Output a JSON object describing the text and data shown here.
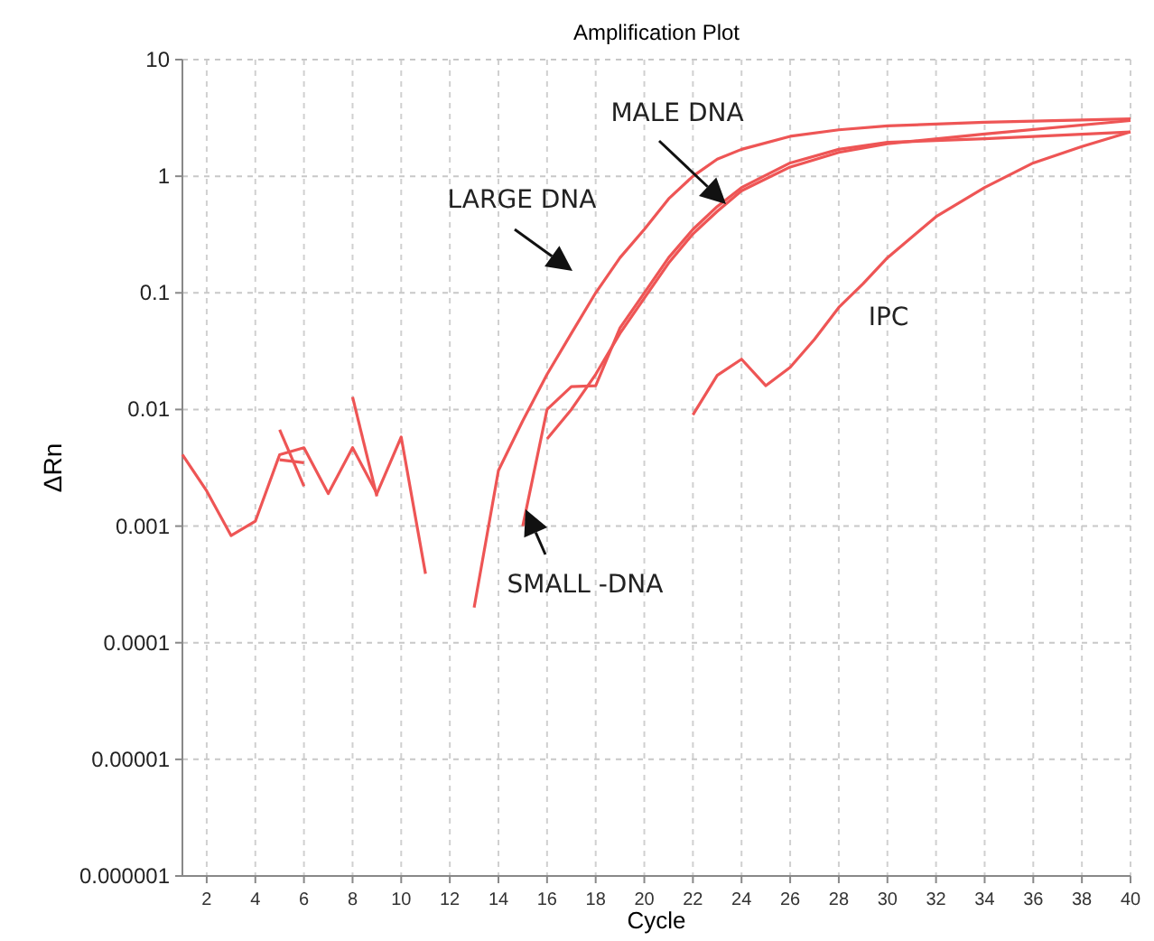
{
  "chart_data": {
    "type": "line",
    "title": "Amplification Plot",
    "xlabel": "Cycle",
    "ylabel": "ΔRn",
    "log": "y",
    "grid": true,
    "marker": "none",
    "line_style": "solid",
    "xlim": [
      1,
      40
    ],
    "xticks": [
      2,
      4,
      6,
      8,
      10,
      12,
      14,
      16,
      18,
      20,
      22,
      24,
      26,
      28,
      30,
      32,
      34,
      36,
      38,
      40
    ],
    "ylim": [
      1e-06,
      10
    ],
    "yticks": [
      {
        "value": 1e-06,
        "label": "0.000001"
      },
      {
        "value": 1e-05,
        "label": "0.00001"
      },
      {
        "value": 0.0001,
        "label": "0.0001"
      },
      {
        "value": 0.001,
        "label": "0.001"
      },
      {
        "value": 0.01,
        "label": "0.01"
      },
      {
        "value": 0.1,
        "label": "0.1"
      },
      1,
      10
    ],
    "series": [
      {
        "color": "#ee5555",
        "x": [
          1,
          2,
          3,
          4,
          5,
          6,
          7,
          8,
          9,
          10,
          11
        ],
        "values": [
          0.0041,
          0.002,
          0.00083,
          0.0011,
          0.0041,
          0.0047,
          0.0019,
          0.0047,
          0.0019,
          0.0058,
          0.00039
        ]
      },
      {
        "color": "#ee5555",
        "x": [
          5,
          6
        ],
        "values": [
          0.0067,
          0.0022
        ]
      },
      {
        "color": "#ee5555",
        "x": [
          5,
          6
        ],
        "values": [
          0.0037,
          0.0035
        ]
      },
      {
        "color": "#ee5555",
        "x": [
          8,
          9
        ],
        "values": [
          0.0128,
          0.0018
        ]
      },
      {
        "color": "#ee5555",
        "x": [
          13,
          14,
          15,
          16,
          17,
          18,
          19,
          20,
          21,
          22,
          23,
          24,
          26,
          28,
          30,
          34,
          40
        ],
        "values": [
          0.0002,
          0.003,
          0.008,
          0.02,
          0.045,
          0.1,
          0.2,
          0.35,
          0.64,
          1.0,
          1.4,
          1.7,
          2.2,
          2.5,
          2.7,
          2.9,
          3.1
        ]
      },
      {
        "color": "#ee5555",
        "x": [
          16,
          17,
          18,
          19,
          20,
          21,
          22,
          23,
          24,
          26,
          28,
          30,
          34,
          40
        ],
        "values": [
          0.0056,
          0.01,
          0.02,
          0.045,
          0.09,
          0.18,
          0.32,
          0.5,
          0.75,
          1.2,
          1.6,
          1.9,
          2.3,
          3.0
        ]
      },
      {
        "color": "#ee5555",
        "x": [
          15,
          16,
          17,
          18,
          19,
          20,
          21,
          22,
          23,
          24,
          26,
          28,
          30,
          34,
          40
        ],
        "values": [
          0.001,
          0.01,
          0.0157,
          0.016,
          0.05,
          0.1,
          0.2,
          0.35,
          0.55,
          0.8,
          1.3,
          1.7,
          1.95,
          2.1,
          2.4
        ]
      },
      {
        "color": "#ee5555",
        "x": [
          22,
          23,
          24,
          25,
          26,
          27,
          28,
          29,
          30,
          32,
          34,
          36,
          38,
          40
        ],
        "values": [
          0.009,
          0.0196,
          0.027,
          0.016,
          0.023,
          0.04,
          0.075,
          0.12,
          0.2,
          0.45,
          0.8,
          1.3,
          1.8,
          2.4
        ]
      }
    ],
    "annotations": [
      "LARGE DNA",
      "MALE DNA",
      "SMALL -DNA",
      "IPC"
    ]
  }
}
